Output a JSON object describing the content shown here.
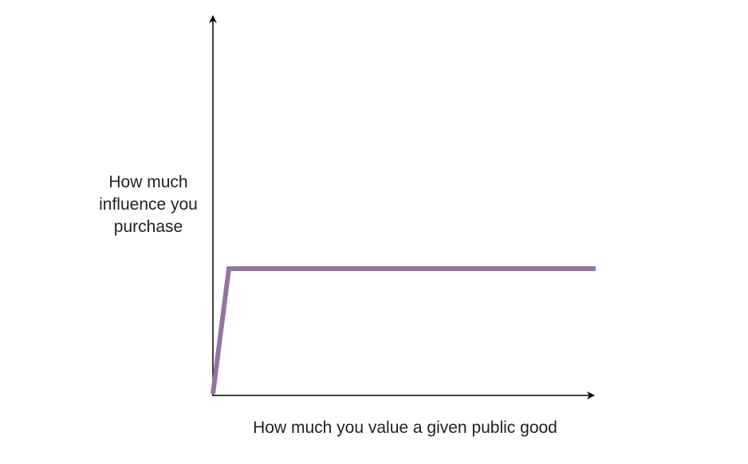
{
  "y_axis": {
    "label": "How much influence you purchase"
  },
  "x_axis": {
    "label": "How much you value a given public good"
  }
}
